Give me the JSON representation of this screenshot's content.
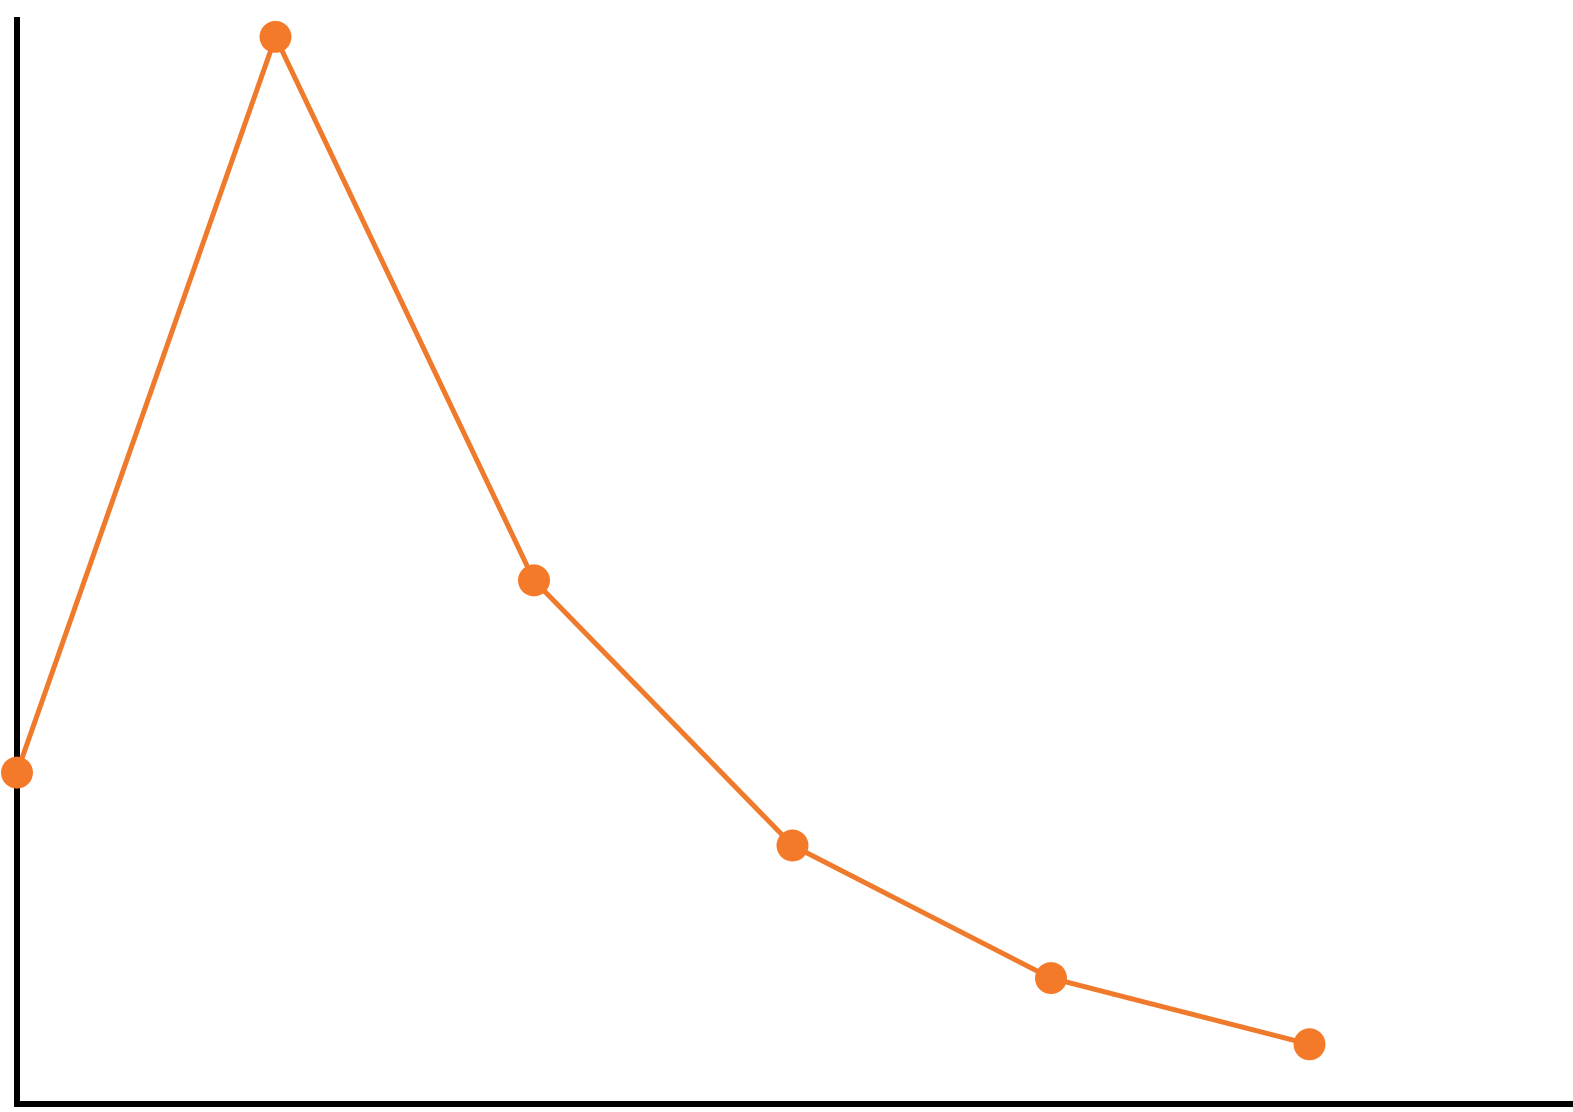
{
  "chart_data": {
    "type": "line",
    "title": "",
    "xlabel": "",
    "ylabel": "",
    "x": [
      0,
      1,
      2,
      3,
      4,
      5
    ],
    "series": [
      {
        "values": [
          25,
          80.5,
          39.5,
          19.5,
          9.5,
          4.5
        ]
      }
    ],
    "xlim": [
      0,
      6
    ],
    "ylim": [
      0,
      82
    ],
    "grid": false,
    "legend": "none"
  },
  "colors": {
    "line": "#ef7a2c",
    "marker": "#f47a29",
    "axis": "#000000",
    "background": "#ffffff"
  }
}
